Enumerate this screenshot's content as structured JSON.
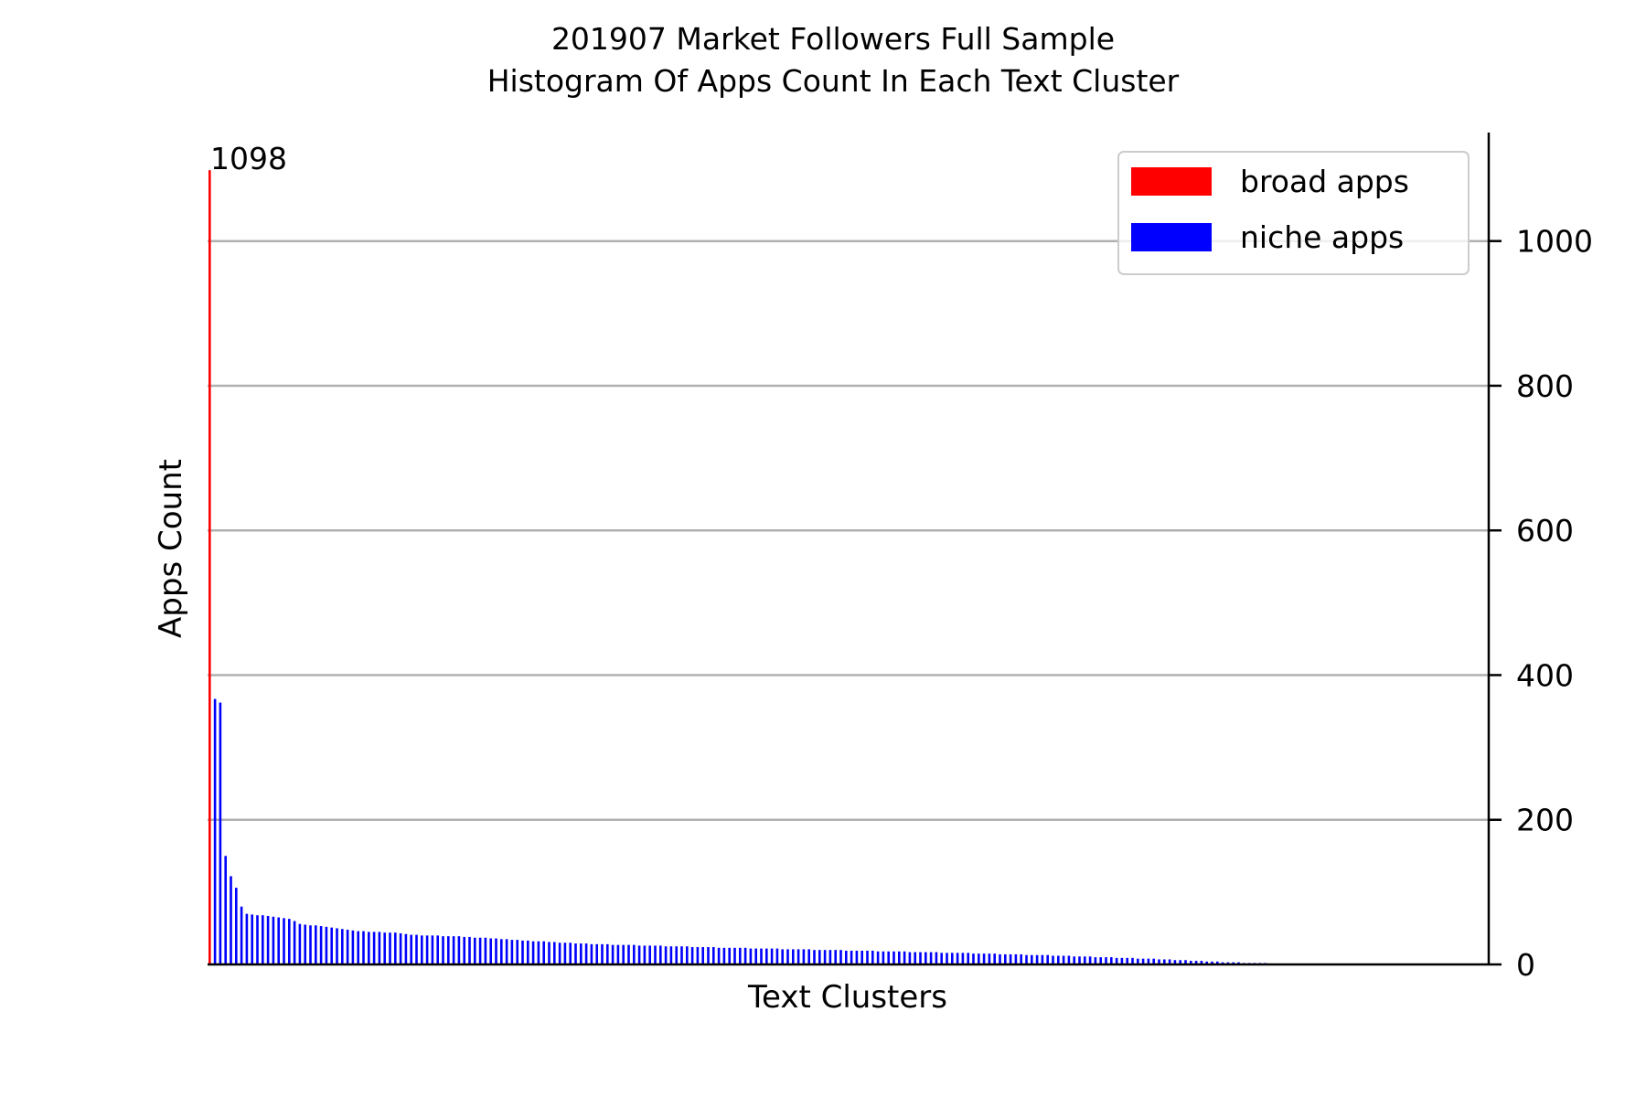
{
  "chart_data": {
    "type": "bar",
    "title": "201907 Market Followers Full Sample",
    "subtitle": "Histogram Of Apps Count In Each Text Cluster",
    "xlabel": "Text Clusters",
    "ylabel": "Apps Count",
    "ylim": [
      0,
      1150
    ],
    "yticks": [
      0,
      200,
      400,
      600,
      800,
      1000
    ],
    "grid": true,
    "y_axis_side": "right",
    "legend_position": "top-right",
    "annotation": "1098",
    "colors": {
      "broad": "#ff0000",
      "niche": "#0000ff",
      "grid": "#b0b0b0"
    },
    "series": [
      {
        "name": "broad apps",
        "color": "#ff0000",
        "values": [
          1098
        ]
      },
      {
        "name": "niche apps",
        "color": "#0000ff",
        "values": [
          0,
          367,
          362,
          150,
          122,
          106,
          80,
          70,
          69,
          68,
          68,
          67,
          66,
          65,
          64,
          63,
          60,
          56,
          55,
          54,
          54,
          53,
          52,
          51,
          50,
          49,
          48,
          47,
          46,
          46,
          45,
          45,
          45,
          44,
          44,
          44,
          43,
          42,
          41,
          41,
          40,
          40,
          40,
          40,
          39,
          39,
          39,
          39,
          38,
          38,
          37,
          37,
          37,
          36,
          36,
          35,
          35,
          34,
          34,
          33,
          33,
          32,
          32,
          32,
          31,
          31,
          30,
          30,
          30,
          29,
          29,
          29,
          28,
          28,
          28,
          28,
          27,
          27,
          27,
          27,
          27,
          26,
          26,
          26,
          26,
          26,
          25,
          25,
          25,
          25,
          25,
          24,
          24,
          24,
          24,
          24,
          23,
          23,
          23,
          23,
          23,
          23,
          22,
          22,
          22,
          22,
          22,
          22,
          21,
          21,
          21,
          21,
          21,
          21,
          20,
          20,
          20,
          20,
          20,
          20,
          19,
          19,
          19,
          19,
          19,
          19,
          18,
          18,
          18,
          18,
          18,
          18,
          17,
          17,
          17,
          17,
          17,
          17,
          16,
          16,
          16,
          16,
          16,
          16,
          15,
          15,
          15,
          15,
          15,
          14,
          14,
          14,
          14,
          14,
          13,
          13,
          13,
          13,
          13,
          12,
          12,
          12,
          12,
          11,
          11,
          11,
          11,
          10,
          10,
          10,
          10,
          9,
          9,
          9,
          9,
          8,
          8,
          8,
          8,
          7,
          7,
          7,
          6,
          6,
          6,
          5,
          5,
          5,
          4,
          4,
          4,
          3,
          3,
          3,
          3,
          2,
          2,
          2,
          2,
          2,
          1,
          1,
          1,
          1,
          1,
          1,
          1,
          1,
          1
        ]
      }
    ]
  }
}
